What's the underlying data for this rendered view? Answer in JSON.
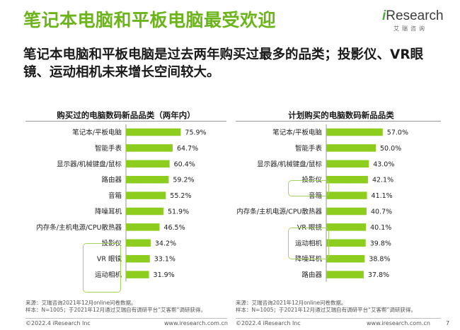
{
  "page": {
    "title": "笔记本电脑和平板电脑最受欢迎",
    "subtitle": "笔记本电脑和平板电脑是过去两年购买过最多的品类；投影仪、VR眼镜、运动相机未来增长空间较大。",
    "page_number": "7"
  },
  "logo": {
    "i": "i",
    "name": "Research",
    "sub": "艾瑞咨询"
  },
  "footer": {
    "left_copyright": "©2022.4 iResearch Inc",
    "left_url": "www.iresearch.com.cn",
    "right_copyright": "©2022.4 iResearch Inc",
    "right_url": "www.iresearch.com.cn"
  },
  "colors": {
    "title": "#6bb51b",
    "bar": "#8ccd1e",
    "highlight_border": "#a4d45c"
  },
  "chart_data": [
    {
      "type": "bar",
      "orientation": "horizontal",
      "title": "购买过的电脑数码新品品类（两年内）",
      "categories": [
        "笔记本/平板电脑",
        "智能手表",
        "显示器/机械键盘/鼠标",
        "路由器",
        "音箱",
        "降噪耳机",
        "内存条/主机电源/CPU散热器",
        "投影仪",
        "VR 眼镜",
        "运动相机"
      ],
      "values": [
        75.9,
        64.7,
        60.4,
        59.2,
        55.2,
        51.9,
        46.5,
        34.2,
        33.1,
        31.9
      ],
      "value_labels": [
        "75.9%",
        "64.7%",
        "60.4%",
        "59.2%",
        "55.2%",
        "51.9%",
        "46.5%",
        "34.2%",
        "33.1%",
        "31.9%"
      ],
      "highlighted": [
        "投影仪",
        "VR 眼镜",
        "运动相机"
      ],
      "xlim": [
        0,
        100
      ],
      "source": [
        "来源：艾瑞咨询2021年12月online问卷数据。",
        "样本：N=1005；于2021年12月通过艾瑞自有调研平台“艾客帮”调研获得。"
      ]
    },
    {
      "type": "bar",
      "orientation": "horizontal",
      "title": "计划购买的电脑数码新品品类",
      "categories": [
        "笔记本/平板电脑",
        "智能手表",
        "显示器/机械键盘/鼠标",
        "投影仪",
        "音箱",
        "内存条/主机电源/CPU散热器",
        "VR 眼镜",
        "运动相机",
        "降噪耳机",
        "路由器"
      ],
      "values": [
        57.0,
        50.0,
        43.0,
        42.1,
        41.1,
        40.7,
        40.1,
        39.8,
        38.8,
        37.8
      ],
      "value_labels": [
        "57.0%",
        "50.0%",
        "43.0%",
        "42.1%",
        "41.1%",
        "40.7%",
        "40.1%",
        "39.8%",
        "38.8%",
        "37.8%"
      ],
      "highlighted": [
        "投影仪",
        "VR 眼镜",
        "运动相机"
      ],
      "xlim": [
        0,
        100
      ],
      "source": [
        "来源：艾瑞咨询2021年12月online问卷数据。",
        "样本：N=1005；于2021年12月通过艾瑞自有调研平台“艾客帮”调研获得。"
      ]
    }
  ]
}
